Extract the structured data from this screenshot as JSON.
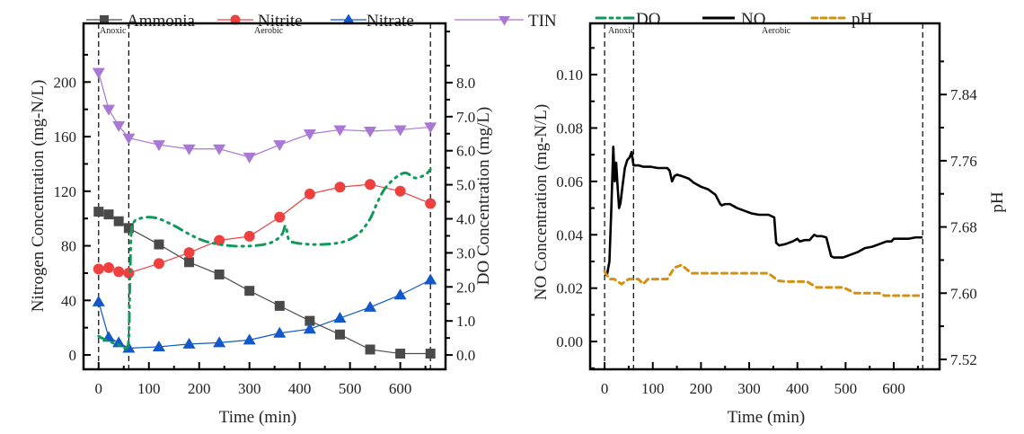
{
  "legend": [
    {
      "name": "Ammonia",
      "color": "#4a4a4a",
      "marker": "square",
      "style": "solid"
    },
    {
      "name": "Nitrite",
      "color": "#ef4040",
      "marker": "circle",
      "style": "solid"
    },
    {
      "name": "Nitrate",
      "color": "#1258c8",
      "marker": "triangle-up",
      "style": "solid"
    },
    {
      "name": "TIN",
      "color": "#a977d4",
      "marker": "triangle-down",
      "style": "solid"
    },
    {
      "name": "DO",
      "color": "#0f9a5c",
      "marker": "none",
      "style": "dash-dot-dot"
    },
    {
      "name": "NO",
      "color": "#000000",
      "marker": "none",
      "style": "solid"
    },
    {
      "name": "pH",
      "color": "#d4900f",
      "marker": "none",
      "style": "dash"
    }
  ],
  "chart_data": [
    {
      "type": "line",
      "title": "",
      "xlabel": "Time (min)",
      "ylabel": "Nitrogen Concentration (mg-N/L)",
      "y2label": "DO Concentration (mg/L)",
      "xlim": [
        -30,
        690
      ],
      "ylim": [
        -10.5,
        243
      ],
      "y2lim": [
        -0.42,
        9.74
      ],
      "xticks": [
        0,
        100,
        200,
        300,
        400,
        500,
        600
      ],
      "yticks": [
        0,
        40,
        80,
        120,
        160,
        200
      ],
      "y2ticks": [
        "0.0",
        "1.0",
        "2.0",
        "3.0",
        "4.0",
        "5.0",
        "6.0",
        "7.0",
        "8.0"
      ],
      "grid": false,
      "phases": [
        {
          "label": "Anoxic",
          "start": 0,
          "end": 60
        },
        {
          "label": "Aerobic",
          "start": 60,
          "end": 660
        }
      ],
      "series": [
        {
          "name": "Ammonia",
          "axis": "left",
          "x": [
            0,
            20,
            40,
            60,
            120,
            180,
            240,
            300,
            360,
            420,
            480,
            540,
            600,
            660
          ],
          "values": [
            105,
            103,
            98,
            93,
            81,
            68,
            59,
            47,
            36,
            25,
            15,
            4,
            1,
            1
          ]
        },
        {
          "name": "Nitrite",
          "axis": "left",
          "x": [
            0,
            20,
            40,
            60,
            120,
            180,
            240,
            300,
            360,
            420,
            480,
            540,
            600,
            660
          ],
          "values": [
            63,
            64,
            61,
            60,
            67,
            75,
            84,
            87,
            101,
            118,
            123,
            125,
            120,
            111
          ]
        },
        {
          "name": "Nitrate",
          "axis": "left",
          "x": [
            0,
            20,
            40,
            60,
            120,
            180,
            240,
            300,
            360,
            420,
            480,
            540,
            600,
            660
          ],
          "values": [
            39,
            13,
            9,
            5,
            6,
            8,
            9,
            11,
            16,
            19,
            27,
            35,
            44,
            55
          ]
        },
        {
          "name": "TIN",
          "axis": "left",
          "x": [
            0,
            20,
            40,
            60,
            120,
            180,
            240,
            300,
            360,
            420,
            480,
            540,
            600,
            660
          ],
          "values": [
            207,
            180,
            168,
            159,
            154,
            151,
            151,
            145,
            154,
            162,
            165,
            164,
            165,
            167
          ]
        },
        {
          "name": "DO",
          "axis": "right",
          "x": [
            0,
            20,
            40,
            55,
            60,
            62,
            65,
            70,
            80,
            100,
            120,
            150,
            180,
            210,
            240,
            270,
            300,
            330,
            350,
            365,
            372,
            378,
            390,
            420,
            450,
            480,
            500,
            520,
            540,
            555,
            570,
            590,
            610,
            630,
            650,
            660
          ],
          "values": [
            0.55,
            0.4,
            0.3,
            0.2,
            0.5,
            2.0,
            3.6,
            3.9,
            4.0,
            4.05,
            4.0,
            3.8,
            3.55,
            3.35,
            3.25,
            3.2,
            3.2,
            3.25,
            3.35,
            3.55,
            3.8,
            3.4,
            3.3,
            3.25,
            3.25,
            3.3,
            3.4,
            3.6,
            4.0,
            4.5,
            4.9,
            5.2,
            5.35,
            5.2,
            5.3,
            5.45
          ]
        }
      ]
    },
    {
      "type": "line",
      "title": "",
      "xlabel": "Time (min)",
      "ylabel": "NO Concentration (mg-N/L)",
      "y2label": "pH",
      "xlim": [
        -30,
        695
      ],
      "ylim": [
        -0.0104,
        0.1192
      ],
      "y2lim": [
        7.508,
        7.926
      ],
      "xticks": [
        0,
        100,
        200,
        300,
        400,
        500,
        600
      ],
      "yticks": [
        "0.00",
        "0.02",
        "0.04",
        "0.06",
        "0.08",
        "0.10"
      ],
      "y2ticks": [
        "7.52",
        "7.60",
        "7.68",
        "7.76",
        "7.84"
      ],
      "grid": false,
      "phases": [
        {
          "label": "Anoxic",
          "start": 0,
          "end": 60
        },
        {
          "label": "Aerobic",
          "start": 60,
          "end": 660
        }
      ],
      "series": [
        {
          "name": "NO",
          "axis": "left",
          "x": [
            0,
            5,
            10,
            14,
            18,
            21,
            24,
            27,
            30,
            33,
            37,
            42,
            47,
            52,
            56,
            60,
            64,
            70,
            80,
            95,
            110,
            130,
            135,
            140,
            145,
            150,
            160,
            175,
            185,
            200,
            215,
            230,
            240,
            243,
            250,
            260,
            275,
            290,
            305,
            320,
            340,
            352,
            356,
            362,
            375,
            390,
            400,
            405,
            415,
            425,
            435,
            440,
            450,
            460,
            470,
            475,
            480,
            495,
            510,
            525,
            540,
            555,
            570,
            585,
            595,
            600,
            615,
            630,
            645,
            660
          ],
          "values": [
            0.025,
            0.025,
            0.03,
            0.05,
            0.073,
            0.06,
            0.067,
            0.058,
            0.05,
            0.052,
            0.058,
            0.065,
            0.068,
            0.069,
            0.071,
            0.066,
            0.066,
            0.066,
            0.0655,
            0.0655,
            0.065,
            0.065,
            0.064,
            0.06,
            0.062,
            0.0625,
            0.062,
            0.061,
            0.0595,
            0.058,
            0.057,
            0.055,
            0.0515,
            0.051,
            0.0515,
            0.0515,
            0.05,
            0.049,
            0.048,
            0.0475,
            0.0475,
            0.0465,
            0.037,
            0.036,
            0.0365,
            0.0375,
            0.0385,
            0.0375,
            0.038,
            0.038,
            0.04,
            0.0395,
            0.0395,
            0.039,
            0.032,
            0.0315,
            0.0315,
            0.0315,
            0.0325,
            0.0335,
            0.035,
            0.0355,
            0.0365,
            0.0375,
            0.0375,
            0.0385,
            0.0385,
            0.0385,
            0.039,
            0.039
          ]
        },
        {
          "name": "pH",
          "axis": "right",
          "x": [
            0,
            10,
            20,
            35,
            50,
            60,
            70,
            80,
            90,
            110,
            130,
            145,
            160,
            180,
            220,
            280,
            340,
            360,
            375,
            400,
            420,
            440,
            475,
            495,
            520,
            560,
            570,
            580,
            600,
            620,
            660
          ],
          "values": [
            7.626,
            7.617,
            7.617,
            7.611,
            7.617,
            7.617,
            7.617,
            7.611,
            7.617,
            7.617,
            7.617,
            7.631,
            7.634,
            7.624,
            7.624,
            7.624,
            7.624,
            7.615,
            7.614,
            7.614,
            7.614,
            7.607,
            7.607,
            7.607,
            7.6,
            7.6,
            7.6,
            7.597,
            7.597,
            7.597,
            7.597
          ]
        }
      ]
    }
  ]
}
